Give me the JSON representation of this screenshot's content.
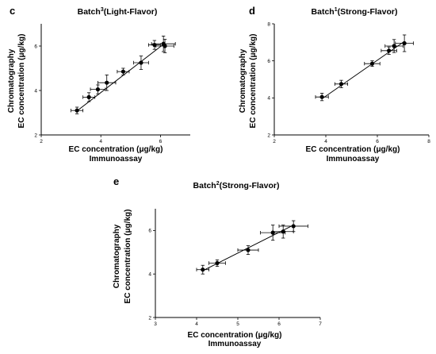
{
  "figure": {
    "panels": [
      {
        "letter": "c",
        "title_prefix": "Batch",
        "title_sup": "3",
        "title_suffix": "(Light-Flavor)"
      },
      {
        "letter": "d",
        "title_prefix": "Batch",
        "title_sup": "1",
        "title_suffix": "(Strong-Flavor)"
      },
      {
        "letter": "e",
        "title_prefix": "Batch",
        "title_sup": "2",
        "title_suffix": "(Strong-Flavor)"
      }
    ]
  },
  "chart_data": [
    {
      "type": "scatter",
      "panel": "c",
      "title": "Batch3(Light-Flavor)",
      "xlabel_line1": "EC concentration (μg/kg)",
      "xlabel_line2": "Immunoassay",
      "ylabel_line1": "Chromatography",
      "ylabel_line2": "EC concentration (μg/kg)",
      "xlim": [
        2,
        7
      ],
      "ylim": [
        2,
        7
      ],
      "xticks": [
        "2",
        "4",
        "6"
      ],
      "yticks": [
        "2",
        "4",
        "6"
      ],
      "xtick_values": [
        2,
        4,
        6
      ],
      "ytick_values": [
        2,
        4,
        6
      ],
      "points": [
        {
          "x": 3.2,
          "y": 3.1,
          "xerr": 0.2,
          "yerr": 0.15
        },
        {
          "x": 3.6,
          "y": 3.7,
          "xerr": 0.2,
          "yerr": 0.2
        },
        {
          "x": 3.9,
          "y": 4.05,
          "xerr": 0.25,
          "yerr": 0.2
        },
        {
          "x": 4.2,
          "y": 4.35,
          "xerr": 0.3,
          "yerr": 0.35
        },
        {
          "x": 4.75,
          "y": 4.85,
          "xerr": 0.2,
          "yerr": 0.15
        },
        {
          "x": 5.35,
          "y": 5.25,
          "xerr": 0.25,
          "yerr": 0.3
        },
        {
          "x": 5.8,
          "y": 6.05,
          "xerr": 0.2,
          "yerr": 0.2
        },
        {
          "x": 6.1,
          "y": 6.1,
          "xerr": 0.4,
          "yerr": 0.35
        },
        {
          "x": 6.15,
          "y": 6.0,
          "xerr": 0.3,
          "yerr": 0.3
        }
      ],
      "fit": {
        "x": [
          3.2,
          6.15
        ],
        "y": [
          3.08,
          6.13
        ]
      }
    },
    {
      "type": "scatter",
      "panel": "d",
      "title": "Batch1(Strong-Flavor)",
      "xlabel_line1": "EC concentration (μg/kg)",
      "xlabel_line2": "Immunoassay",
      "ylabel_line1": "Chromatography",
      "ylabel_line2": "EC concentration (μg/kg)",
      "xlim": [
        2,
        8
      ],
      "ylim": [
        2,
        8
      ],
      "xticks": [
        "2",
        "4",
        "6",
        "8"
      ],
      "yticks": [
        "2",
        "4",
        "6",
        "8"
      ],
      "xtick_values": [
        2,
        4,
        6,
        8
      ],
      "ytick_values": [
        2,
        4,
        6,
        8
      ],
      "points": [
        {
          "x": 3.85,
          "y": 4.05,
          "xerr": 0.25,
          "yerr": 0.2
        },
        {
          "x": 4.6,
          "y": 4.75,
          "xerr": 0.25,
          "yerr": 0.2
        },
        {
          "x": 5.8,
          "y": 5.85,
          "xerr": 0.3,
          "yerr": 0.15
        },
        {
          "x": 6.45,
          "y": 6.55,
          "xerr": 0.3,
          "yerr": 0.2
        },
        {
          "x": 6.65,
          "y": 6.8,
          "xerr": 0.35,
          "yerr": 0.35
        },
        {
          "x": 7.05,
          "y": 6.95,
          "xerr": 0.35,
          "yerr": 0.45
        }
      ],
      "fit": {
        "x": [
          3.85,
          7.05
        ],
        "y": [
          3.95,
          7.05
        ]
      }
    },
    {
      "type": "scatter",
      "panel": "e",
      "title": "Batch2(Strong-Flavor)",
      "xlabel_line1": "EC concentration (μg/kg)",
      "xlabel_line2": "Immunoassay",
      "ylabel_line1": "Chromatography",
      "ylabel_line2": "EC concentration (μg/kg)",
      "xlim": [
        3,
        7
      ],
      "ylim": [
        2,
        7
      ],
      "xticks": [
        "3",
        "4",
        "5",
        "6",
        "7"
      ],
      "yticks": [
        "2",
        "4",
        "6"
      ],
      "xtick_values": [
        3,
        4,
        5,
        6,
        7
      ],
      "ytick_values": [
        2,
        4,
        6
      ],
      "points": [
        {
          "x": 4.15,
          "y": 4.2,
          "xerr": 0.15,
          "yerr": 0.2
        },
        {
          "x": 4.5,
          "y": 4.5,
          "xerr": 0.2,
          "yerr": 0.15
        },
        {
          "x": 5.25,
          "y": 5.1,
          "xerr": 0.25,
          "yerr": 0.2
        },
        {
          "x": 5.85,
          "y": 5.9,
          "xerr": 0.3,
          "yerr": 0.35
        },
        {
          "x": 6.1,
          "y": 5.95,
          "xerr": 0.25,
          "yerr": 0.3
        },
        {
          "x": 6.35,
          "y": 6.2,
          "xerr": 0.35,
          "yerr": 0.25
        }
      ],
      "fit": {
        "x": [
          4.15,
          6.35
        ],
        "y": [
          4.15,
          6.25
        ]
      }
    }
  ]
}
